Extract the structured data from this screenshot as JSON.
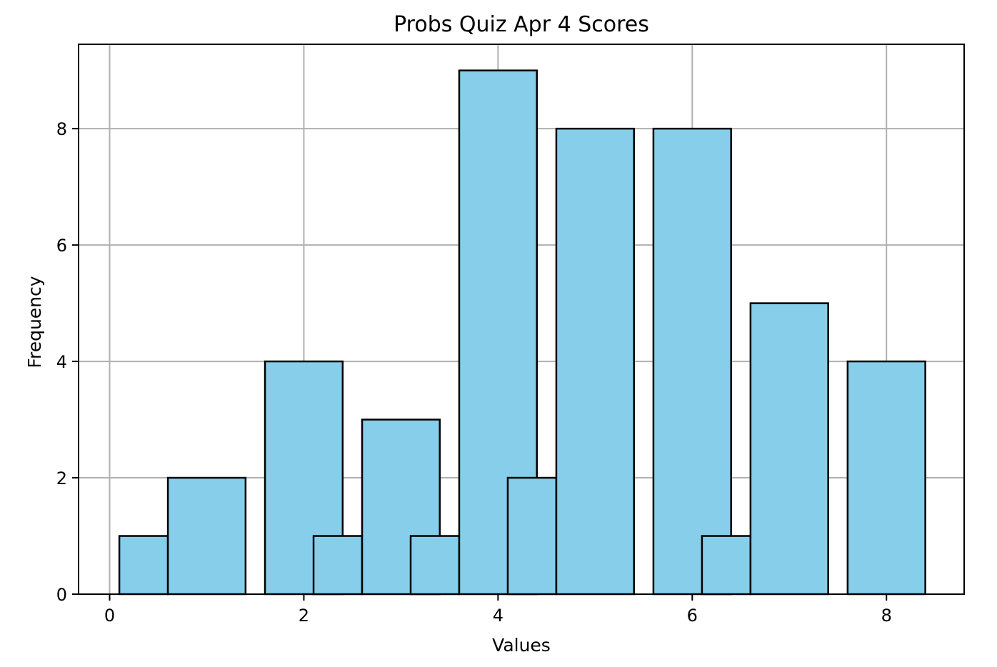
{
  "chart_data": {
    "type": "bar",
    "title": "Probs Quiz Apr 4 Scores",
    "xlabel": "Values",
    "ylabel": "Frequency",
    "xlim": [
      -0.32,
      8.8
    ],
    "ylim": [
      0,
      9.45
    ],
    "xticks": [
      0,
      2,
      4,
      6,
      8
    ],
    "yticks": [
      0,
      2,
      4,
      6,
      8
    ],
    "grid": true,
    "colors": {
      "bar_fill": "#87ceeb",
      "bar_edge": "#000000",
      "grid": "#b0b0b0"
    },
    "bars": [
      {
        "x0": 0.1,
        "x1": 0.6,
        "value": 1
      },
      {
        "x0": 0.6,
        "x1": 1.4,
        "value": 2
      },
      {
        "x0": 1.6,
        "x1": 2.4,
        "value": 4
      },
      {
        "x0": 2.1,
        "x1": 2.6,
        "value": 1
      },
      {
        "x0": 2.6,
        "x1": 3.4,
        "value": 3
      },
      {
        "x0": 3.1,
        "x1": 3.6,
        "value": 1
      },
      {
        "x0": 3.6,
        "x1": 4.4,
        "value": 9
      },
      {
        "x0": 4.1,
        "x1": 4.6,
        "value": 2
      },
      {
        "x0": 4.6,
        "x1": 5.4,
        "value": 8
      },
      {
        "x0": 5.6,
        "x1": 6.4,
        "value": 8
      },
      {
        "x0": 6.1,
        "x1": 6.6,
        "value": 1
      },
      {
        "x0": 6.6,
        "x1": 7.4,
        "value": 5
      },
      {
        "x0": 7.6,
        "x1": 8.4,
        "value": 4
      }
    ]
  }
}
